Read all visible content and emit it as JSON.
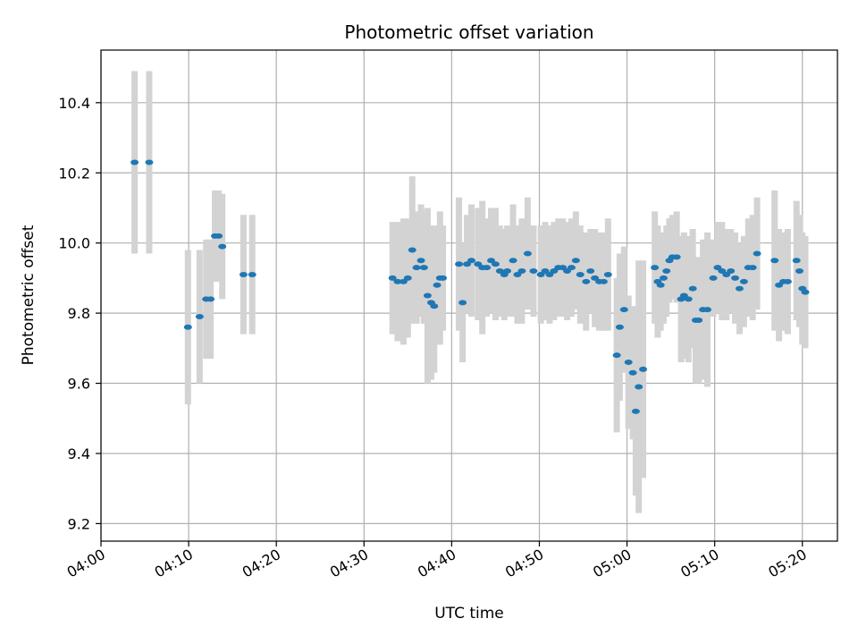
{
  "chart_data": {
    "type": "scatter",
    "title": "Photometric offset variation",
    "xlabel": "UTC time",
    "ylabel": "Photometric offset",
    "x_ticks": [
      "04:00",
      "04:10",
      "04:20",
      "04:30",
      "04:40",
      "04:50",
      "05:00",
      "05:10",
      "05:20"
    ],
    "y_ticks": [
      "9.2",
      "9.4",
      "9.6",
      "9.8",
      "10.0",
      "10.2",
      "10.4"
    ],
    "xlim": [
      "04:00",
      "05:24"
    ],
    "ylim": [
      9.15,
      10.55
    ],
    "grid": true,
    "colors": {
      "point": "#1f77b4",
      "errorbar": "#d3d3d3",
      "grid": "#b0b0b0"
    },
    "series": [
      {
        "x": [
          "04:03:50",
          "04:05:30",
          "04:09:55",
          "04:11:15",
          "04:12:00",
          "04:12:30",
          "04:13:00",
          "04:13:25",
          "04:13:50",
          "04:16:15",
          "04:17:15",
          "04:33:15",
          "04:33:50",
          "04:34:30",
          "04:35:00",
          "04:35:30",
          "04:36:00",
          "04:36:30",
          "04:36:50",
          "04:37:15",
          "04:37:40",
          "04:38:00",
          "04:38:20",
          "04:38:40",
          "04:39:00",
          "04:40:50",
          "04:41:15",
          "04:41:45",
          "04:42:15",
          "04:43:00",
          "04:43:30",
          "04:44:00",
          "04:44:30",
          "04:45:00",
          "04:45:30",
          "04:46:00",
          "04:46:20",
          "04:47:00",
          "04:47:30",
          "04:48:00",
          "04:48:40",
          "04:49:20",
          "04:50:10",
          "04:50:40",
          "04:51:10",
          "04:51:40",
          "04:52:10",
          "04:52:40",
          "04:53:10",
          "04:53:40",
          "04:54:10",
          "04:54:40",
          "04:55:20",
          "04:55:50",
          "04:56:20",
          "04:56:50",
          "04:57:20",
          "04:57:50",
          "04:58:50",
          "04:59:10",
          "04:59:40",
          "05:00:10",
          "05:00:40",
          "05:01:00",
          "05:01:20",
          "05:01:50",
          "05:03:10",
          "05:03:30",
          "05:03:50",
          "05:04:10",
          "05:04:30",
          "05:04:50",
          "05:05:10",
          "05:05:40",
          "05:06:10",
          "05:06:30",
          "05:07:00",
          "05:07:30",
          "05:07:50",
          "05:08:10",
          "05:08:40",
          "05:09:10",
          "05:09:50",
          "05:10:20",
          "05:10:50",
          "05:11:20",
          "05:11:50",
          "05:12:20",
          "05:12:50",
          "05:13:20",
          "05:13:50",
          "05:14:20",
          "05:14:50",
          "05:16:50",
          "05:17:20",
          "05:17:50",
          "05:18:20",
          "05:19:20",
          "05:19:40",
          "05:20:00",
          "05:20:20"
        ],
        "y": [
          10.23,
          10.23,
          9.76,
          9.79,
          9.84,
          9.84,
          10.02,
          10.02,
          9.99,
          9.91,
          9.91,
          9.9,
          9.89,
          9.89,
          9.9,
          9.98,
          9.93,
          9.95,
          9.93,
          9.85,
          9.83,
          9.82,
          9.88,
          9.9,
          9.9,
          9.94,
          9.83,
          9.94,
          9.95,
          9.94,
          9.93,
          9.93,
          9.95,
          9.94,
          9.92,
          9.91,
          9.92,
          9.95,
          9.91,
          9.92,
          9.97,
          9.92,
          9.91,
          9.92,
          9.91,
          9.92,
          9.93,
          9.93,
          9.92,
          9.93,
          9.95,
          9.91,
          9.89,
          9.92,
          9.9,
          9.89,
          9.89,
          9.91,
          9.68,
          9.76,
          9.81,
          9.66,
          9.63,
          9.52,
          9.59,
          9.64,
          9.93,
          9.89,
          9.88,
          9.9,
          9.92,
          9.95,
          9.96,
          9.96,
          9.84,
          9.85,
          9.84,
          9.87,
          9.78,
          9.78,
          9.81,
          9.81,
          9.9,
          9.93,
          9.92,
          9.91,
          9.92,
          9.9,
          9.87,
          9.89,
          9.93,
          9.93,
          9.97,
          9.95,
          9.88,
          9.89,
          9.89,
          9.95,
          9.92,
          9.87,
          9.86
        ],
        "err": [
          0.26,
          0.26,
          0.22,
          0.19,
          0.17,
          0.17,
          0.13,
          0.13,
          0.15,
          0.17,
          0.17,
          0.16,
          0.17,
          0.18,
          0.17,
          0.21,
          0.16,
          0.16,
          0.16,
          0.25,
          0.22,
          0.19,
          0.17,
          0.19,
          0.15,
          0.19,
          0.17,
          0.14,
          0.16,
          0.16,
          0.19,
          0.14,
          0.15,
          0.16,
          0.13,
          0.13,
          0.13,
          0.16,
          0.14,
          0.15,
          0.16,
          0.13,
          0.14,
          0.14,
          0.14,
          0.14,
          0.14,
          0.14,
          0.14,
          0.14,
          0.14,
          0.14,
          0.14,
          0.12,
          0.14,
          0.14,
          0.14,
          0.16,
          0.22,
          0.21,
          0.18,
          0.19,
          0.19,
          0.24,
          0.36,
          0.31,
          0.16,
          0.16,
          0.13,
          0.13,
          0.13,
          0.12,
          0.12,
          0.13,
          0.18,
          0.18,
          0.18,
          0.17,
          0.18,
          0.18,
          0.2,
          0.22,
          0.11,
          0.13,
          0.14,
          0.13,
          0.12,
          0.13,
          0.13,
          0.13,
          0.14,
          0.15,
          0.16,
          0.2,
          0.16,
          0.14,
          0.15,
          0.17,
          0.16,
          0.16,
          0.16
        ]
      }
    ]
  }
}
